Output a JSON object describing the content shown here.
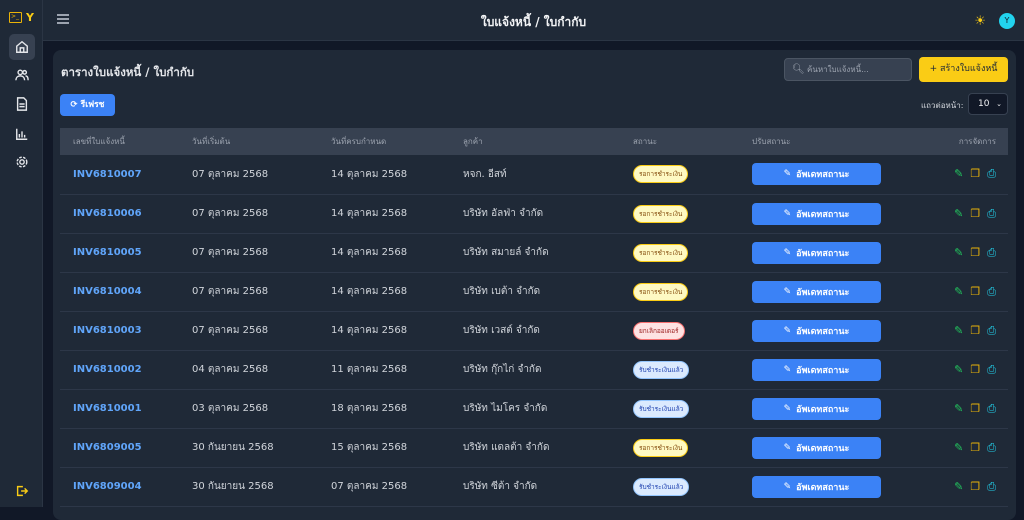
{
  "app": {
    "logo_letter": "Y",
    "title": "ใบแจ้งหนี้ / ใบกำกับ",
    "avatar": "Y"
  },
  "sidebar": {
    "items": [
      {
        "icon": "home-icon"
      },
      {
        "icon": "users-icon"
      },
      {
        "icon": "document-icon"
      },
      {
        "icon": "chart-icon"
      },
      {
        "icon": "gear-icon"
      }
    ],
    "logout_icon": "logout-icon"
  },
  "card": {
    "title": "ตารางใบแจ้งหนี้ / ใบกำกับ",
    "search_placeholder": "ค้นหาใบแจ้งหนี้...",
    "create_label": "สร้างใบแจ้งหนี้",
    "refresh_label": "รีเฟรช",
    "per_page_label": "แถวต่อหน้า:",
    "per_page_value": "10"
  },
  "table": {
    "headers": [
      "เลขที่ใบแจ้งหนี้",
      "วันที่เริ่มต้น",
      "วันที่ครบกำหนด",
      "ลูกค้า",
      "สถานะ",
      "ปรับสถานะ",
      "การจัดการ"
    ],
    "update_label": "อัพเดทสถานะ",
    "status_colors": {
      "pending": {
        "bg": "#fef9c3",
        "border": "#facc15",
        "text": "#854d0e"
      },
      "cancelled": {
        "bg": "#fee2e2",
        "border": "#f87171",
        "text": "#991b1b"
      },
      "paid": {
        "bg": "#dbeafe",
        "border": "#93c5fd",
        "text": "#1e40af"
      }
    },
    "rows": [
      {
        "id": "INV6810007",
        "start": "07 ตุลาคม 2568",
        "due": "14 ตุลาคม 2568",
        "customer": "หจก. อีสท์",
        "status": "รอการชำระเงิน",
        "status_type": "pending"
      },
      {
        "id": "INV6810006",
        "start": "07 ตุลาคม 2568",
        "due": "14 ตุลาคม 2568",
        "customer": "บริษัท อัลฟ่า จำกัด",
        "status": "รอการชำระเงิน",
        "status_type": "pending"
      },
      {
        "id": "INV6810005",
        "start": "07 ตุลาคม 2568",
        "due": "14 ตุลาคม 2568",
        "customer": "บริษัท สมายล์ จำกัด",
        "status": "รอการชำระเงิน",
        "status_type": "pending"
      },
      {
        "id": "INV6810004",
        "start": "07 ตุลาคม 2568",
        "due": "14 ตุลาคม 2568",
        "customer": "บริษัท เบต้า จำกัด",
        "status": "รอการชำระเงิน",
        "status_type": "pending"
      },
      {
        "id": "INV6810003",
        "start": "07 ตุลาคม 2568",
        "due": "14 ตุลาคม 2568",
        "customer": "บริษัท เวสต์ จำกัด",
        "status": "ยกเลิกออเดอร์",
        "status_type": "cancelled"
      },
      {
        "id": "INV6810002",
        "start": "04 ตุลาคม 2568",
        "due": "11 ตุลาคม 2568",
        "customer": "บริษัท กุ๊กไก่ จำกัด",
        "status": "รับชำระเงินแล้ว",
        "status_type": "paid"
      },
      {
        "id": "INV6810001",
        "start": "03 ตุลาคม 2568",
        "due": "18 ตุลาคม 2568",
        "customer": "บริษัท ไมโคร จำกัด",
        "status": "รับชำระเงินแล้ว",
        "status_type": "paid"
      },
      {
        "id": "INV6809005",
        "start": "30 กันยายน 2568",
        "due": "15 ตุลาคม 2568",
        "customer": "บริษัท แดลต้า จำกัด",
        "status": "รอการชำระเงิน",
        "status_type": "pending"
      },
      {
        "id": "INV6809004",
        "start": "30 กันยายน 2568",
        "due": "07 ตุลาคม 2568",
        "customer": "บริษัท ซีต้า จำกัด",
        "status": "รับชำระเงินแล้ว",
        "status_type": "paid"
      }
    ]
  }
}
